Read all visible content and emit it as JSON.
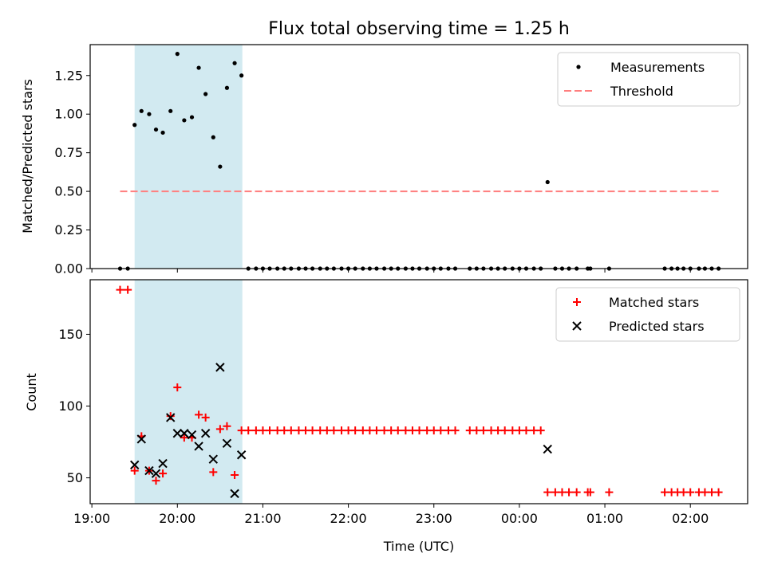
{
  "chart_data": {
    "title": "Flux total observing time = 1.25 h",
    "shared_x": {
      "label": "Time (UTC)",
      "ticks": [
        "19:00",
        "20:00",
        "21:00",
        "22:00",
        "23:00",
        "00:00",
        "01:00",
        "02:00"
      ],
      "tick_hours": [
        0,
        1,
        2,
        3,
        4,
        5,
        6,
        7
      ],
      "range_hours_since_19": [
        -0.02,
        7.67
      ]
    },
    "observing_window_hours_since_19": [
      0.5,
      1.76
    ],
    "shaded_color": "#add8e6",
    "panels": [
      {
        "type": "scatter",
        "ylabel": "Matched/Predicted stars",
        "ylim": [
          0,
          1.45
        ],
        "yticks": [
          "0.00",
          "0.25",
          "0.50",
          "0.75",
          "1.00",
          "1.25"
        ],
        "ytick_values": [
          0,
          0.25,
          0.5,
          0.75,
          1.0,
          1.25
        ],
        "legend": [
          "Measurements",
          "Threshold"
        ],
        "legend_position": "top-right",
        "threshold": {
          "value": 0.5,
          "x_range": [
            0.33,
            7.33
          ],
          "color": "#ff7f7f"
        },
        "measurements": {
          "x": [
            0.33,
            0.42,
            0.5,
            0.58,
            0.67,
            0.75,
            0.83,
            0.92,
            1.0,
            1.08,
            1.17,
            1.25,
            1.33,
            1.42,
            1.5,
            1.58,
            1.67,
            1.75,
            1.83,
            1.92,
            2.0,
            2.08,
            2.17,
            2.25,
            2.33,
            2.42,
            2.5,
            2.58,
            2.67,
            2.75,
            2.83,
            2.92,
            3.0,
            3.08,
            3.17,
            3.25,
            3.33,
            3.42,
            3.5,
            3.58,
            3.67,
            3.75,
            3.83,
            3.92,
            4.0,
            4.08,
            4.17,
            4.25,
            4.42,
            4.5,
            4.58,
            4.67,
            4.75,
            4.83,
            4.92,
            5.0,
            5.08,
            5.17,
            5.25,
            5.33,
            5.42,
            5.5,
            5.58,
            5.67,
            5.8,
            5.83,
            6.05,
            6.7,
            6.78,
            6.85,
            6.92,
            7.0,
            7.1,
            7.17,
            7.25,
            7.33
          ],
          "y": [
            0,
            0,
            0.93,
            1.02,
            1.0,
            0.9,
            0.88,
            1.02,
            1.39,
            0.96,
            0.98,
            1.3,
            1.13,
            0.85,
            0.66,
            1.17,
            1.33,
            1.25,
            0,
            0,
            0,
            0,
            0,
            0,
            0,
            0,
            0,
            0,
            0,
            0,
            0,
            0,
            0,
            0,
            0,
            0,
            0,
            0,
            0,
            0,
            0,
            0,
            0,
            0,
            0,
            0,
            0,
            0,
            0,
            0,
            0,
            0,
            0,
            0,
            0,
            0,
            0,
            0,
            0,
            0.56,
            0,
            0,
            0,
            0,
            0,
            0,
            0,
            0,
            0,
            0,
            0,
            0,
            0,
            0,
            0,
            0
          ],
          "color": "#000000"
        }
      },
      {
        "type": "scatter",
        "ylabel": "Count",
        "ylim": [
          32,
          188
        ],
        "yticks": [
          "50",
          "100",
          "150"
        ],
        "ytick_values": [
          50,
          100,
          150
        ],
        "legend": [
          "Matched stars",
          "Predicted stars"
        ],
        "legend_position": "top-right",
        "series": [
          {
            "name": "Matched stars",
            "marker": "plus",
            "color": "#ff0000",
            "x": [
              0.33,
              0.42,
              0.5,
              0.58,
              0.67,
              0.75,
              0.83,
              0.92,
              1.0,
              1.08,
              1.17,
              1.25,
              1.33,
              1.42,
              1.5,
              1.58,
              1.67,
              1.75,
              1.83,
              1.92,
              2.0,
              2.08,
              2.17,
              2.25,
              2.33,
              2.42,
              2.5,
              2.58,
              2.67,
              2.75,
              2.83,
              2.92,
              3.0,
              3.08,
              3.17,
              3.25,
              3.33,
              3.42,
              3.5,
              3.58,
              3.67,
              3.75,
              3.83,
              3.92,
              4.0,
              4.08,
              4.17,
              4.25,
              4.42,
              4.5,
              4.58,
              4.67,
              4.75,
              4.83,
              4.92,
              5.0,
              5.08,
              5.17,
              5.25,
              5.33,
              5.42,
              5.5,
              5.58,
              5.67,
              5.8,
              5.83,
              6.05,
              6.7,
              6.78,
              6.85,
              6.92,
              7.0,
              7.1,
              7.17,
              7.25,
              7.33
            ],
            "y": [
              181,
              181,
              55,
              79,
              55,
              48,
              53,
              93,
              113,
              78,
              78,
              94,
              92,
              54,
              84,
              86,
              52,
              83,
              83,
              83,
              83,
              83,
              83,
              83,
              83,
              83,
              83,
              83,
              83,
              83,
              83,
              83,
              83,
              83,
              83,
              83,
              83,
              83,
              83,
              83,
              83,
              83,
              83,
              83,
              83,
              83,
              83,
              83,
              83,
              83,
              83,
              83,
              83,
              83,
              83,
              83,
              83,
              83,
              83,
              40,
              40,
              40,
              40,
              40,
              40,
              40,
              40,
              40,
              40,
              40,
              40,
              40,
              40,
              40,
              40,
              40
            ]
          },
          {
            "name": "Predicted stars",
            "marker": "x",
            "color": "#000000",
            "x": [
              0.5,
              0.58,
              0.67,
              0.75,
              0.83,
              0.92,
              1.0,
              1.08,
              1.17,
              1.25,
              1.33,
              1.42,
              1.5,
              1.58,
              1.67,
              1.75,
              5.33
            ],
            "y": [
              59,
              77,
              55,
              53,
              60,
              92,
              81,
              81,
              80,
              72,
              81,
              63,
              127,
              74,
              39,
              66,
              70
            ]
          }
        ]
      }
    ]
  }
}
